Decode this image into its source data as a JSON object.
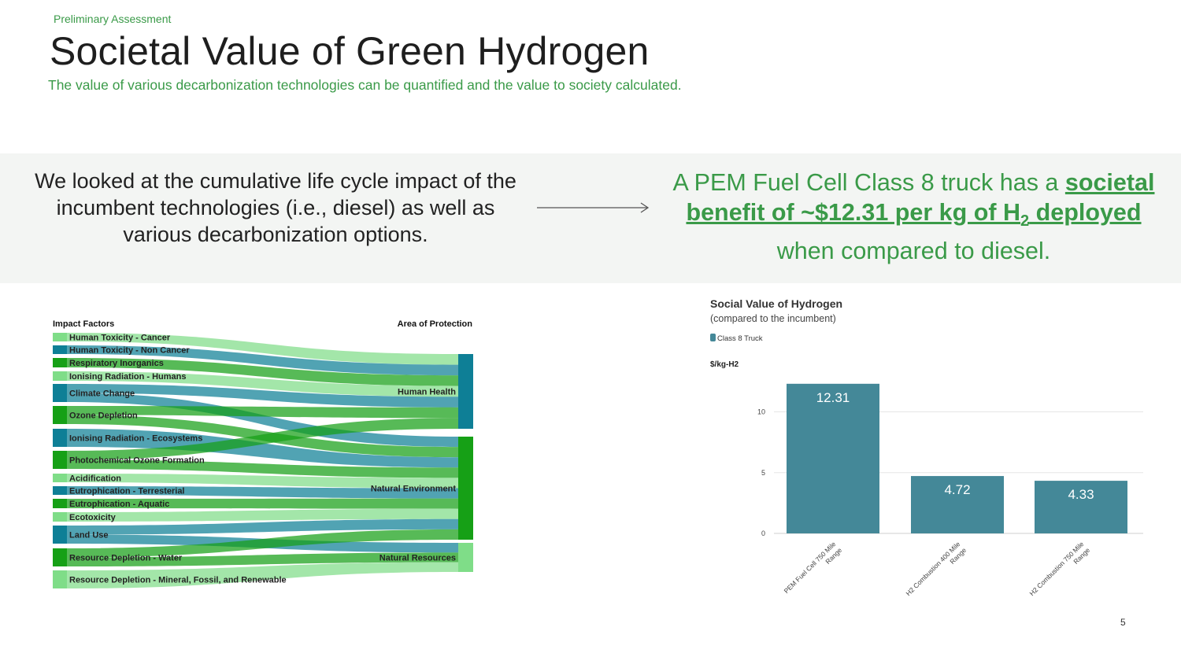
{
  "header": {
    "eyebrow": "Preliminary Assessment",
    "title": "Societal Value of Green Hydrogen",
    "subtitle": "The value of various decarbonization technologies can be quantified and the value to society calculated."
  },
  "callout": {
    "left_text": "We looked at the cumulative life cycle impact of the incumbent technologies (i.e., diesel) as well as various decarbonization options.",
    "right_prefix": "A PEM Fuel Cell Class 8 truck has a ",
    "right_highlight_1": "societal benefit of ~$12.31 per kg of H",
    "right_highlight_sub": "2",
    "right_highlight_2": " deployed",
    "right_suffix": " when compared to diesel."
  },
  "colors": {
    "accent_green": "#3a9a48",
    "teal": "#0e7f96",
    "dark_green": "#16a016",
    "light_green": "#7fdd88",
    "bar": "#448898"
  },
  "chart_data": [
    {
      "type": "sankey",
      "left_header": "Impact Factors",
      "right_header": "Area of Protection",
      "sources": [
        {
          "name": "Human Toxicity - Cancer",
          "color": "light"
        },
        {
          "name": "Human Toxicity - Non Cancer",
          "color": "teal"
        },
        {
          "name": "Respiratory Inorganics",
          "color": "green"
        },
        {
          "name": "Ionising Radiation - Humans",
          "color": "light"
        },
        {
          "name": "Climate Change",
          "color": "teal"
        },
        {
          "name": "Ozone Depletion",
          "color": "green"
        },
        {
          "name": "Ionising Radiation - Ecosystems",
          "color": "teal"
        },
        {
          "name": "Photochemical Ozone Formation",
          "color": "green"
        },
        {
          "name": "Acidification",
          "color": "light"
        },
        {
          "name": "Eutrophication - Terresterial",
          "color": "teal"
        },
        {
          "name": "Eutrophication - Aquatic",
          "color": "green"
        },
        {
          "name": "Ecotoxicity",
          "color": "light"
        },
        {
          "name": "Land Use",
          "color": "teal"
        },
        {
          "name": "Resource Depletion - Water",
          "color": "green"
        },
        {
          "name": "Resource Depletion - Mineral, Fossil, and Renewable",
          "color": "light"
        }
      ],
      "targets": [
        {
          "name": "Human Health",
          "color": "teal"
        },
        {
          "name": "Natural Environment",
          "color": "green"
        },
        {
          "name": "Natural Resources",
          "color": "light"
        }
      ],
      "links": [
        {
          "source": "Human Toxicity - Cancer",
          "target": "Human Health"
        },
        {
          "source": "Human Toxicity - Non Cancer",
          "target": "Human Health"
        },
        {
          "source": "Respiratory Inorganics",
          "target": "Human Health"
        },
        {
          "source": "Ionising Radiation - Humans",
          "target": "Human Health"
        },
        {
          "source": "Climate Change",
          "target": "Human Health"
        },
        {
          "source": "Climate Change",
          "target": "Natural Environment"
        },
        {
          "source": "Ozone Depletion",
          "target": "Human Health"
        },
        {
          "source": "Ozone Depletion",
          "target": "Natural Environment"
        },
        {
          "source": "Ionising Radiation - Ecosystems",
          "target": "Natural Environment"
        },
        {
          "source": "Photochemical Ozone Formation",
          "target": "Human Health"
        },
        {
          "source": "Photochemical Ozone Formation",
          "target": "Natural Environment"
        },
        {
          "source": "Acidification",
          "target": "Natural Environment"
        },
        {
          "source": "Eutrophication - Terresterial",
          "target": "Natural Environment"
        },
        {
          "source": "Eutrophication - Aquatic",
          "target": "Natural Environment"
        },
        {
          "source": "Ecotoxicity",
          "target": "Natural Environment"
        },
        {
          "source": "Land Use",
          "target": "Natural Environment"
        },
        {
          "source": "Land Use",
          "target": "Natural Resources"
        },
        {
          "source": "Resource Depletion - Water",
          "target": "Natural Environment"
        },
        {
          "source": "Resource Depletion - Water",
          "target": "Natural Resources"
        },
        {
          "source": "Resource Depletion - Mineral, Fossil, and Renewable",
          "target": "Natural Resources"
        }
      ]
    },
    {
      "type": "bar",
      "title": "Social Value of Hydrogen",
      "subtitle": "(compared to the incumbent)",
      "legend": "Class 8  Truck",
      "ylabel": "$/kg-H2",
      "categories": [
        "PEM Fuel Cell 750 Mile Range",
        "H2 Combustion 400 Mile Range",
        "H2 Combustion 750 Mile Range"
      ],
      "values": [
        12.31,
        4.72,
        4.33
      ],
      "value_labels": [
        "12.31",
        "4.72",
        "4.33"
      ],
      "yticks": [
        0,
        5,
        10
      ],
      "ylim": [
        0,
        12.9
      ]
    }
  ],
  "footer": {
    "page_number": "5"
  }
}
